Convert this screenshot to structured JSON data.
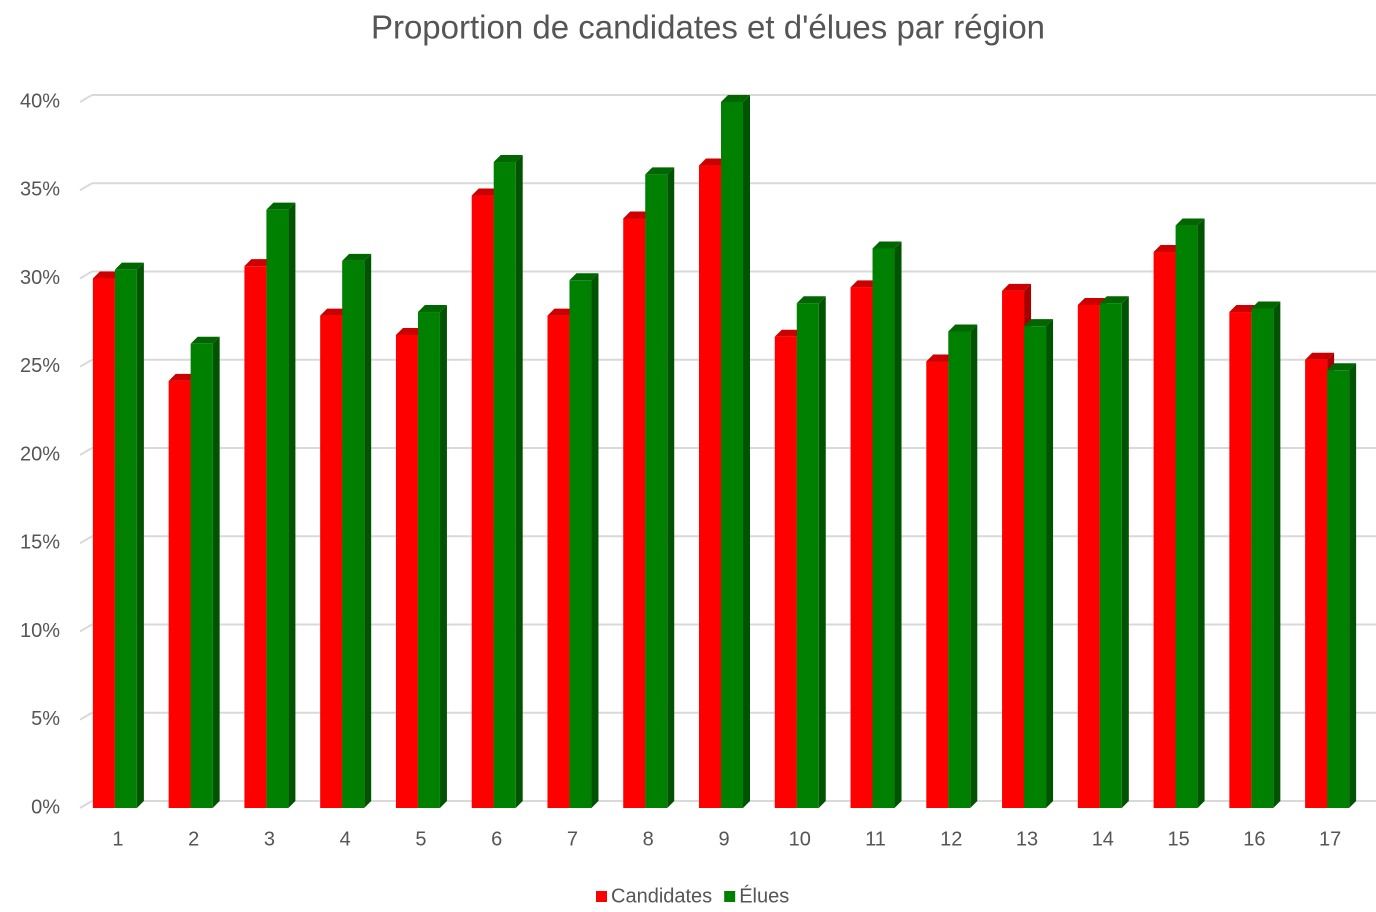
{
  "chart_data": {
    "type": "bar",
    "title": "Proportion de candidates et d'élues par région",
    "categories": [
      "1",
      "2",
      "3",
      "4",
      "5",
      "6",
      "7",
      "8",
      "9",
      "10",
      "11",
      "12",
      "13",
      "14",
      "15",
      "16",
      "17"
    ],
    "series": [
      {
        "name": "Candidates",
        "color": "#ff0000",
        "values": [
          30,
          24.2,
          30.7,
          27.9,
          26.8,
          34.7,
          27.9,
          33.4,
          36.4,
          26.7,
          29.5,
          25.3,
          29.3,
          28.5,
          31.5,
          28.1,
          25.4
        ]
      },
      {
        "name": "Élues",
        "color": "#008000",
        "values": [
          30.5,
          26.3,
          33.9,
          31,
          28.1,
          36.6,
          29.9,
          35.9,
          40,
          28.6,
          31.7,
          27,
          27.3,
          28.6,
          33,
          28.3,
          24.8
        ]
      }
    ],
    "ylim": [
      0,
      40
    ],
    "yticks": [
      {
        "value": 0,
        "label": "0%"
      },
      {
        "value": 5,
        "label": "5%"
      },
      {
        "value": 10,
        "label": "10%"
      },
      {
        "value": 15,
        "label": "15%"
      },
      {
        "value": 20,
        "label": "20%"
      },
      {
        "value": 25,
        "label": "25%"
      },
      {
        "value": 30,
        "label": "30%"
      },
      {
        "value": 35,
        "label": "35%"
      },
      {
        "value": 40,
        "label": "40%"
      }
    ],
    "grid": true,
    "legend": "bottom"
  }
}
